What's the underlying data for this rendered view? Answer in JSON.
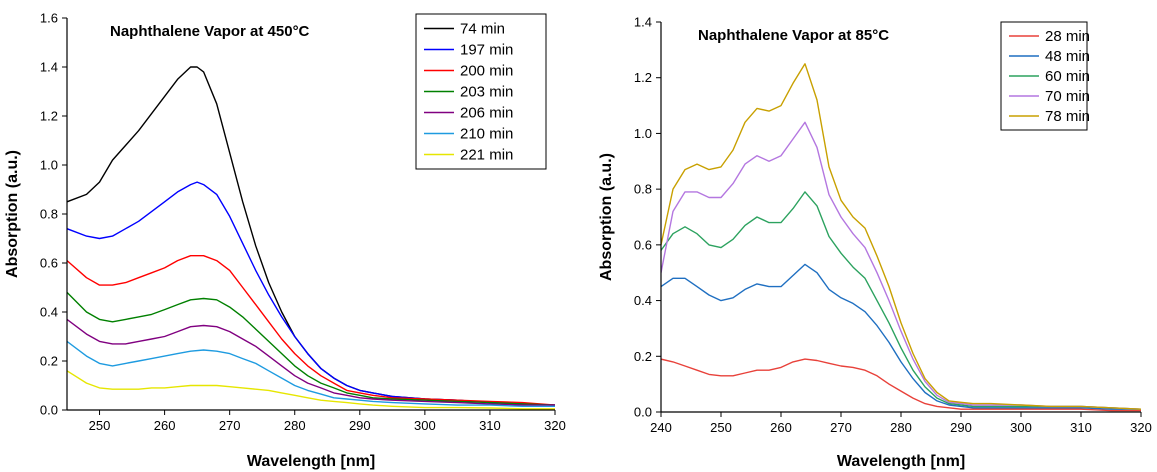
{
  "chart_data": [
    {
      "type": "line",
      "title": "Naphthalene Vapor at 450°C",
      "xlabel": "Wavelength [nm]",
      "ylabel": "Absorption (a.u.)",
      "xlim": [
        245,
        320
      ],
      "ylim": [
        0,
        1.6
      ],
      "xticks": [
        250,
        260,
        270,
        280,
        290,
        300,
        310,
        320
      ],
      "yticks": [
        0.0,
        0.2,
        0.4,
        0.6,
        0.8,
        1.0,
        1.2,
        1.4,
        1.6
      ],
      "ytick_labels": [
        "0.0",
        "0.2",
        "0.4",
        "0.6",
        "0.8",
        "1.0",
        "1.2",
        "1.4",
        "1.6"
      ],
      "grid": false,
      "legend": "top-right",
      "series": [
        {
          "name": "74 min",
          "color": "#000000",
          "x": [
            245,
            248,
            250,
            252,
            254,
            256,
            258,
            260,
            262,
            264,
            265,
            266,
            268,
            270,
            272,
            274,
            276,
            278,
            280,
            282,
            284,
            286,
            288,
            290,
            292,
            295,
            300,
            305,
            310,
            315,
            320
          ],
          "y": [
            0.85,
            0.88,
            0.93,
            1.02,
            1.08,
            1.14,
            1.21,
            1.28,
            1.35,
            1.4,
            1.4,
            1.38,
            1.25,
            1.05,
            0.85,
            0.67,
            0.52,
            0.4,
            0.3,
            0.23,
            0.17,
            0.13,
            0.1,
            0.08,
            0.07,
            0.055,
            0.045,
            0.04,
            0.03,
            0.025,
            0.02
          ]
        },
        {
          "name": "197 min",
          "color": "#0000ff",
          "x": [
            245,
            248,
            250,
            252,
            254,
            256,
            258,
            260,
            262,
            264,
            265,
            266,
            268,
            270,
            272,
            274,
            276,
            278,
            280,
            282,
            284,
            286,
            288,
            290,
            292,
            295,
            300,
            305,
            310,
            315,
            320
          ],
          "y": [
            0.74,
            0.71,
            0.7,
            0.71,
            0.74,
            0.77,
            0.81,
            0.85,
            0.89,
            0.92,
            0.93,
            0.92,
            0.88,
            0.79,
            0.68,
            0.57,
            0.47,
            0.38,
            0.3,
            0.23,
            0.17,
            0.13,
            0.1,
            0.08,
            0.07,
            0.055,
            0.045,
            0.04,
            0.03,
            0.025,
            0.02
          ]
        },
        {
          "name": "200 min",
          "color": "#ff0000",
          "x": [
            245,
            248,
            250,
            252,
            254,
            256,
            258,
            260,
            262,
            264,
            266,
            268,
            270,
            272,
            274,
            276,
            278,
            280,
            282,
            284,
            286,
            288,
            290,
            292,
            295,
            300,
            305,
            310,
            315,
            320
          ],
          "y": [
            0.61,
            0.54,
            0.51,
            0.51,
            0.52,
            0.54,
            0.56,
            0.58,
            0.61,
            0.63,
            0.63,
            0.61,
            0.57,
            0.5,
            0.43,
            0.36,
            0.29,
            0.23,
            0.18,
            0.14,
            0.11,
            0.08,
            0.07,
            0.06,
            0.05,
            0.045,
            0.04,
            0.035,
            0.03,
            0.02
          ]
        },
        {
          "name": "203 min",
          "color": "#008000",
          "x": [
            245,
            248,
            250,
            252,
            254,
            256,
            258,
            260,
            262,
            264,
            266,
            268,
            270,
            272,
            274,
            276,
            278,
            280,
            282,
            284,
            286,
            288,
            290,
            292,
            295,
            300,
            305,
            310,
            315,
            320
          ],
          "y": [
            0.48,
            0.4,
            0.37,
            0.36,
            0.37,
            0.38,
            0.39,
            0.41,
            0.43,
            0.45,
            0.455,
            0.45,
            0.42,
            0.38,
            0.33,
            0.28,
            0.23,
            0.18,
            0.14,
            0.11,
            0.09,
            0.07,
            0.06,
            0.05,
            0.045,
            0.04,
            0.035,
            0.03,
            0.025,
            0.02
          ]
        },
        {
          "name": "206 min",
          "color": "#800080",
          "x": [
            245,
            248,
            250,
            252,
            254,
            256,
            258,
            260,
            262,
            264,
            266,
            268,
            270,
            272,
            274,
            276,
            278,
            280,
            282,
            284,
            286,
            288,
            290,
            292,
            295,
            300,
            305,
            310,
            315,
            320
          ],
          "y": [
            0.37,
            0.31,
            0.28,
            0.27,
            0.27,
            0.28,
            0.29,
            0.3,
            0.32,
            0.34,
            0.345,
            0.34,
            0.32,
            0.29,
            0.26,
            0.22,
            0.18,
            0.14,
            0.11,
            0.09,
            0.07,
            0.06,
            0.05,
            0.045,
            0.04,
            0.035,
            0.03,
            0.025,
            0.02,
            0.02
          ]
        },
        {
          "name": "210 min",
          "color": "#1e9be0",
          "x": [
            245,
            248,
            250,
            252,
            254,
            256,
            258,
            260,
            262,
            264,
            266,
            268,
            270,
            272,
            274,
            276,
            278,
            280,
            282,
            284,
            286,
            288,
            290,
            292,
            295,
            300,
            305,
            310,
            315,
            320
          ],
          "y": [
            0.28,
            0.22,
            0.19,
            0.18,
            0.19,
            0.2,
            0.21,
            0.22,
            0.23,
            0.24,
            0.245,
            0.24,
            0.23,
            0.21,
            0.19,
            0.16,
            0.13,
            0.1,
            0.08,
            0.065,
            0.05,
            0.045,
            0.04,
            0.035,
            0.03,
            0.025,
            0.02,
            0.02,
            0.015,
            0.015
          ]
        },
        {
          "name": "221 min",
          "color": "#e6e600",
          "x": [
            245,
            248,
            250,
            252,
            254,
            256,
            258,
            260,
            262,
            264,
            266,
            268,
            270,
            272,
            274,
            276,
            278,
            280,
            282,
            284,
            286,
            288,
            290,
            292,
            295,
            300,
            305,
            310,
            315,
            320
          ],
          "y": [
            0.16,
            0.11,
            0.09,
            0.085,
            0.085,
            0.085,
            0.09,
            0.09,
            0.095,
            0.1,
            0.1,
            0.1,
            0.095,
            0.09,
            0.085,
            0.08,
            0.07,
            0.06,
            0.05,
            0.04,
            0.035,
            0.03,
            0.025,
            0.02,
            0.015,
            0.01,
            0.01,
            0.008,
            0.005,
            0.005
          ]
        }
      ]
    },
    {
      "type": "line",
      "title": "Naphthalene Vapor at 85°C",
      "xlabel": "Wavelength [nm]",
      "ylabel": "Absorption (a.u.)",
      "xlim": [
        240,
        320
      ],
      "ylim": [
        0,
        1.4
      ],
      "xticks": [
        240,
        250,
        260,
        270,
        280,
        290,
        300,
        310,
        320
      ],
      "yticks": [
        0.0,
        0.2,
        0.4,
        0.6,
        0.8,
        1.0,
        1.2,
        1.4
      ],
      "ytick_labels": [
        "0.0",
        "0.2",
        "0.4",
        "0.6",
        "0.8",
        "1.0",
        "1.2",
        "1.4"
      ],
      "grid": false,
      "legend": "top-right",
      "series": [
        {
          "name": "28 min",
          "color": "#e8413a",
          "x": [
            240,
            242,
            244,
            246,
            248,
            250,
            252,
            254,
            256,
            258,
            260,
            262,
            264,
            266,
            268,
            270,
            272,
            274,
            276,
            278,
            280,
            282,
            284,
            286,
            288,
            290,
            292,
            295,
            300,
            305,
            310,
            315,
            320
          ],
          "y": [
            0.19,
            0.18,
            0.165,
            0.15,
            0.135,
            0.13,
            0.13,
            0.14,
            0.15,
            0.15,
            0.16,
            0.18,
            0.19,
            0.185,
            0.175,
            0.165,
            0.16,
            0.15,
            0.13,
            0.1,
            0.075,
            0.05,
            0.03,
            0.02,
            0.015,
            0.01,
            0.01,
            0.01,
            0.01,
            0.01,
            0.01,
            0.005,
            0.005
          ]
        },
        {
          "name": "48 min",
          "color": "#1f6fc1",
          "x": [
            240,
            242,
            244,
            246,
            248,
            250,
            252,
            254,
            256,
            258,
            260,
            262,
            264,
            266,
            268,
            270,
            272,
            274,
            276,
            278,
            280,
            282,
            284,
            286,
            288,
            290,
            292,
            295,
            300,
            305,
            310,
            315,
            320
          ],
          "y": [
            0.45,
            0.48,
            0.48,
            0.45,
            0.42,
            0.4,
            0.41,
            0.44,
            0.46,
            0.45,
            0.45,
            0.49,
            0.53,
            0.5,
            0.44,
            0.41,
            0.39,
            0.36,
            0.31,
            0.25,
            0.18,
            0.12,
            0.07,
            0.04,
            0.025,
            0.02,
            0.015,
            0.015,
            0.015,
            0.015,
            0.015,
            0.01,
            0.01
          ]
        },
        {
          "name": "60 min",
          "color": "#2ca25f",
          "x": [
            240,
            242,
            244,
            246,
            248,
            250,
            252,
            254,
            256,
            258,
            260,
            262,
            264,
            266,
            268,
            270,
            272,
            274,
            276,
            278,
            280,
            282,
            284,
            286,
            288,
            290,
            292,
            295,
            300,
            305,
            310,
            315,
            320
          ],
          "y": [
            0.58,
            0.64,
            0.665,
            0.64,
            0.6,
            0.59,
            0.62,
            0.67,
            0.7,
            0.68,
            0.68,
            0.73,
            0.79,
            0.74,
            0.63,
            0.57,
            0.52,
            0.48,
            0.4,
            0.32,
            0.23,
            0.15,
            0.09,
            0.05,
            0.03,
            0.025,
            0.02,
            0.02,
            0.02,
            0.02,
            0.02,
            0.015,
            0.01
          ]
        },
        {
          "name": "70 min",
          "color": "#b477e0",
          "x": [
            240,
            242,
            244,
            246,
            248,
            250,
            252,
            254,
            256,
            258,
            260,
            262,
            264,
            266,
            268,
            270,
            272,
            274,
            276,
            278,
            280,
            282,
            284,
            286,
            288,
            290,
            292,
            295,
            300,
            305,
            310,
            315,
            320
          ],
          "y": [
            0.5,
            0.72,
            0.79,
            0.79,
            0.77,
            0.77,
            0.82,
            0.89,
            0.92,
            0.9,
            0.92,
            0.98,
            1.04,
            0.95,
            0.78,
            0.7,
            0.64,
            0.59,
            0.5,
            0.4,
            0.29,
            0.19,
            0.11,
            0.06,
            0.035,
            0.03,
            0.025,
            0.025,
            0.025,
            0.02,
            0.02,
            0.015,
            0.01
          ]
        },
        {
          "name": "78 min",
          "color": "#c8a000",
          "x": [
            240,
            242,
            244,
            246,
            248,
            250,
            252,
            254,
            256,
            258,
            260,
            262,
            264,
            266,
            268,
            270,
            272,
            274,
            276,
            278,
            280,
            282,
            284,
            286,
            288,
            290,
            292,
            295,
            300,
            305,
            310,
            315,
            320
          ],
          "y": [
            0.6,
            0.8,
            0.87,
            0.89,
            0.87,
            0.88,
            0.94,
            1.04,
            1.09,
            1.08,
            1.1,
            1.18,
            1.25,
            1.12,
            0.88,
            0.76,
            0.7,
            0.66,
            0.56,
            0.45,
            0.32,
            0.21,
            0.12,
            0.07,
            0.04,
            0.035,
            0.03,
            0.03,
            0.025,
            0.02,
            0.02,
            0.015,
            0.01
          ]
        }
      ]
    }
  ]
}
